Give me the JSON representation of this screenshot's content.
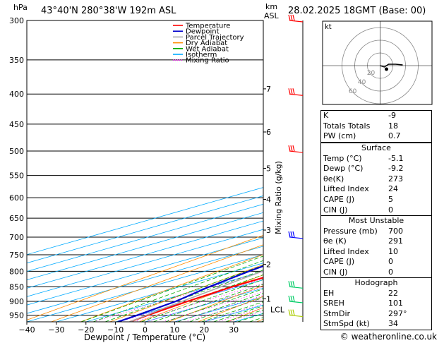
{
  "header": {
    "location": "43°40'N  280°38'W  192m  ASL",
    "datetime": "28.02.2025  18GMT  (Base: 00)",
    "left_axis_unit": "hPa",
    "km_unit": "km",
    "asl_unit": "ASL"
  },
  "chart_data": {
    "type": "line",
    "xlabel": "Dewpoint / Temperature (°C)",
    "ylabel": "",
    "right_axis_label": "Mixing Ratio (g/kg)",
    "pressure_levels": [
      300,
      350,
      400,
      450,
      500,
      550,
      600,
      650,
      700,
      750,
      800,
      850,
      900,
      950
    ],
    "pressure_ticks": [
      "300",
      "350",
      "400",
      "450",
      "500",
      "550",
      "600",
      "650",
      "700",
      "750",
      "800",
      "850",
      "900",
      "950"
    ],
    "temperature_ticks": [
      -40,
      -30,
      -20,
      -10,
      0,
      10,
      20,
      30
    ],
    "temperature_tick_labels": [
      "−40",
      "−30",
      "−20",
      "−10",
      "0",
      "10",
      "20",
      "30"
    ],
    "xlim": [
      -40,
      40
    ],
    "ylim_hpa": [
      300,
      975
    ],
    "km_ticks": [
      {
        "label": "7",
        "p": 392
      },
      {
        "label": "6",
        "p": 464
      },
      {
        "label": "5",
        "p": 535
      },
      {
        "label": "4",
        "p": 604
      },
      {
        "label": "3",
        "p": 681
      },
      {
        "label": "2",
        "p": 779
      },
      {
        "label": "1",
        "p": 891
      }
    ],
    "lcl_label": "LCL",
    "lcl_p": 929,
    "mixing_ratio_labels": [
      {
        "label": "1",
        "w": 1
      },
      {
        "label": "2",
        "w": 2
      },
      {
        "label": "3",
        "w": 3
      },
      {
        "label": "4",
        "w": 4
      },
      {
        "label": "6",
        "w": 6
      },
      {
        "label": "8",
        "w": 8
      },
      {
        "label": "10",
        "w": 10
      },
      {
        "label": "15",
        "w": 15
      },
      {
        "label": "20",
        "w": 20
      },
      {
        "label": "25",
        "w": 25
      }
    ],
    "mixing_ratio_label_p": 596,
    "series": [
      {
        "name": "Temperature",
        "color": "#ff0000",
        "points": [
          {
            "p": 975,
            "t": -5.1
          },
          {
            "p": 950,
            "t": -7.0
          },
          {
            "p": 900,
            "t": -10.0
          },
          {
            "p": 850,
            "t": -12.3
          },
          {
            "p": 800,
            "t": -12.8
          },
          {
            "p": 750,
            "t": -14.5
          },
          {
            "p": 700,
            "t": -17.5
          },
          {
            "p": 650,
            "t": -21.5
          },
          {
            "p": 600,
            "t": -26.0
          },
          {
            "p": 550,
            "t": -31.0
          },
          {
            "p": 500,
            "t": -37.0
          },
          {
            "p": 450,
            "t": -43.5
          },
          {
            "p": 400,
            "t": -50.5
          },
          {
            "p": 350,
            "t": -58.5
          },
          {
            "p": 300,
            "t": -66.0
          }
        ]
      },
      {
        "name": "Dewpoint",
        "color": "#0000cc",
        "points": [
          {
            "p": 975,
            "t": -9.2
          },
          {
            "p": 950,
            "t": -10.5
          },
          {
            "p": 900,
            "t": -14.0
          },
          {
            "p": 850,
            "t": -20.0
          },
          {
            "p": 800,
            "t": -25.0
          },
          {
            "p": 750,
            "t": -29.5
          },
          {
            "p": 700,
            "t": -21.0
          },
          {
            "p": 650,
            "t": -23.5
          },
          {
            "p": 600,
            "t": -27.5
          },
          {
            "p": 550,
            "t": -32.5
          },
          {
            "p": 500,
            "t": -38.5
          },
          {
            "p": 450,
            "t": -45.5
          },
          {
            "p": 400,
            "t": -52.0
          },
          {
            "p": 350,
            "t": -60.5
          },
          {
            "p": 300,
            "t": -68.5
          }
        ]
      },
      {
        "name": "Parcel Trajectory",
        "color": "#aaaaaa",
        "points": [
          {
            "p": 975,
            "t": -5.1
          },
          {
            "p": 929,
            "t": -9.5
          },
          {
            "p": 850,
            "t": -16.0
          },
          {
            "p": 800,
            "t": -20.5
          },
          {
            "p": 750,
            "t": -25.5
          },
          {
            "p": 700,
            "t": -31.0
          },
          {
            "p": 650,
            "t": -37.0
          },
          {
            "p": 600,
            "t": -43.5
          },
          {
            "p": 550,
            "t": -50.5
          },
          {
            "p": 500,
            "t": -58.0
          },
          {
            "p": 450,
            "t": -66.0
          },
          {
            "p": 400,
            "t": -75.0
          },
          {
            "p": 350,
            "t": -85.0
          },
          {
            "p": 300,
            "t": -96.0
          }
        ]
      }
    ],
    "legend": [
      {
        "name": "Temperature",
        "color": "#ff0000",
        "style": "solid"
      },
      {
        "name": "Dewpoint",
        "color": "#0000cc",
        "style": "solid"
      },
      {
        "name": "Parcel Trajectory",
        "color": "#aaaaaa",
        "style": "solid"
      },
      {
        "name": "Dry Adiabat",
        "color": "#ff8c00",
        "style": "solid"
      },
      {
        "name": "Wet Adiabat",
        "color": "#00aa00",
        "style": "solid"
      },
      {
        "name": "Isotherm",
        "color": "#00aaff",
        "style": "solid"
      },
      {
        "name": "Mixing Ratio",
        "color": "#ff00ff",
        "style": "dotted"
      }
    ],
    "legend_position": "top-right",
    "wind_barbs": [
      {
        "p": 300,
        "color": "#ff0000"
      },
      {
        "p": 400,
        "color": "#ff0000"
      },
      {
        "p": 500,
        "color": "#ff0000"
      },
      {
        "p": 700,
        "color": "#0000ff"
      },
      {
        "p": 850,
        "color": "#00cc66"
      },
      {
        "p": 900,
        "color": "#00cc66"
      },
      {
        "p": 950,
        "color": "#aacc00"
      }
    ]
  },
  "hodograph": {
    "unit_label": "kt",
    "ring_labels": [
      "20",
      "40",
      "60"
    ]
  },
  "indices": {
    "rows": [
      {
        "label": "K",
        "value": "-9"
      },
      {
        "label": "Totals Totals",
        "value": "18"
      },
      {
        "label": "PW (cm)",
        "value": "0.7"
      }
    ]
  },
  "surface": {
    "title": "Surface",
    "rows": [
      {
        "label": "Temp (°C)",
        "value": "-5.1"
      },
      {
        "label": "Dewp (°C)",
        "value": "-9.2"
      },
      {
        "label": "θe(K)",
        "value": "273"
      },
      {
        "label": "Lifted Index",
        "value": "24"
      },
      {
        "label": "CAPE (J)",
        "value": "5"
      },
      {
        "label": "CIN (J)",
        "value": "0"
      }
    ]
  },
  "most_unstable": {
    "title": "Most Unstable",
    "rows": [
      {
        "label": "Pressure (mb)",
        "value": "700"
      },
      {
        "label": "θe (K)",
        "value": "291"
      },
      {
        "label": "Lifted Index",
        "value": "10"
      },
      {
        "label": "CAPE (J)",
        "value": "0"
      },
      {
        "label": "CIN (J)",
        "value": "0"
      }
    ]
  },
  "hodograph_table": {
    "title": "Hodograph",
    "rows": [
      {
        "label": "EH",
        "value": "22"
      },
      {
        "label": "SREH",
        "value": "101"
      },
      {
        "label": "StmDir",
        "value": "297°"
      },
      {
        "label": "StmSpd (kt)",
        "value": "34"
      }
    ]
  },
  "footer": {
    "copyright": "© weatheronline.co.uk"
  }
}
